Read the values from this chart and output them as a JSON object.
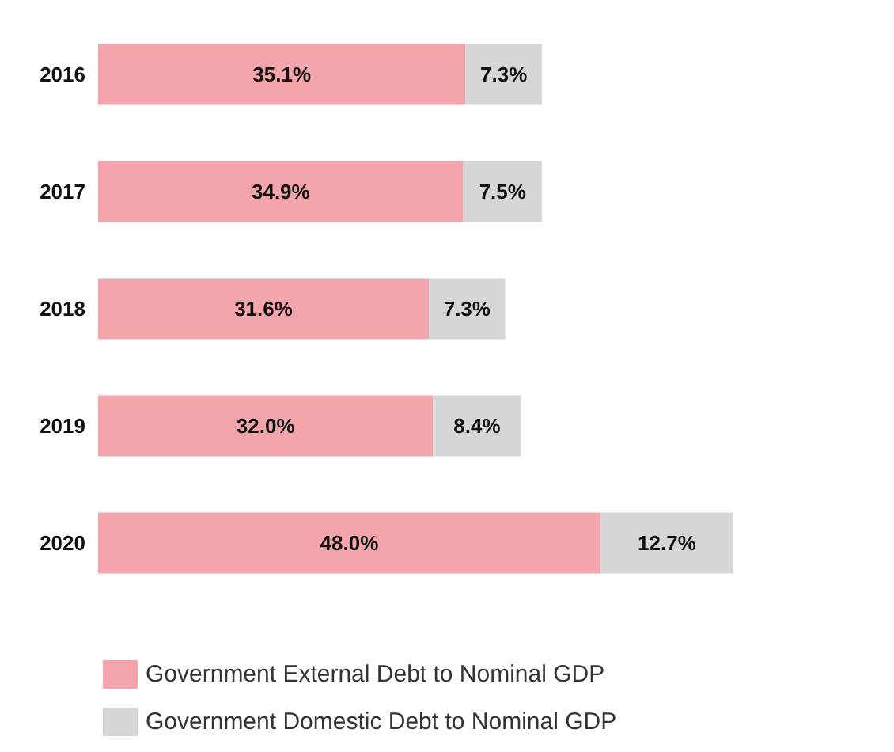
{
  "chart_data": {
    "type": "bar",
    "orientation": "horizontal",
    "stacked": true,
    "categories": [
      "2016",
      "2017",
      "2018",
      "2019",
      "2020"
    ],
    "series": [
      {
        "name": "Government External Debt to Nominal GDP",
        "color": "#f4a5ac",
        "values": [
          35.1,
          34.9,
          31.6,
          32.0,
          48.0
        ],
        "value_labels": [
          "35.1%",
          "34.9%",
          "31.6%",
          "32.0%",
          "48.0%"
        ]
      },
      {
        "name": "Government Domestic Debt to Nominal GDP",
        "color": "#d6d6d6",
        "values": [
          7.3,
          7.5,
          7.3,
          8.4,
          12.7
        ],
        "value_labels": [
          "7.3%",
          "7.5%",
          "7.3%",
          "8.4%",
          "12.7%"
        ]
      }
    ],
    "legend": "bottom"
  }
}
